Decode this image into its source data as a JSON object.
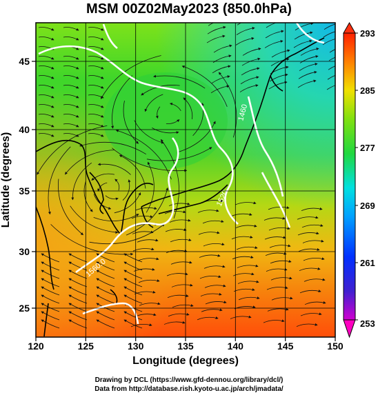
{
  "title": "MSM 00Z02May2023 (850.0hPa)",
  "x_axis": {
    "label": "Longitude (degrees)",
    "ticks": [
      "120",
      "125",
      "130",
      "135",
      "140",
      "145",
      "150"
    ],
    "range": [
      120,
      150
    ]
  },
  "y_axis": {
    "label": "Latitude  (degrees)",
    "ticks": [
      "25",
      "30",
      "35",
      "40",
      "45"
    ],
    "range": [
      22.4,
      47.6
    ]
  },
  "colorbar": {
    "ticks": [
      "293",
      "285",
      "277",
      "269",
      "261",
      "253"
    ],
    "range": [
      253,
      293
    ]
  },
  "contour_labels": [
    "1560.0",
    "1520",
    "1460"
  ],
  "credits": {
    "line1": "Drawing by DCL (https://www.gfd-dennou.org/library/dcl/)",
    "line2": "Data from http://database.rish.kyoto-u.ac.jp/arch/jmadata/"
  },
  "colors": {
    "map_top": "#1fd6d6",
    "map_mid": "#35d52a",
    "map_low": "#f08a10",
    "map_bottom": "#ff5a0a",
    "contour": "#ffffff",
    "streamline": "#111111"
  }
}
